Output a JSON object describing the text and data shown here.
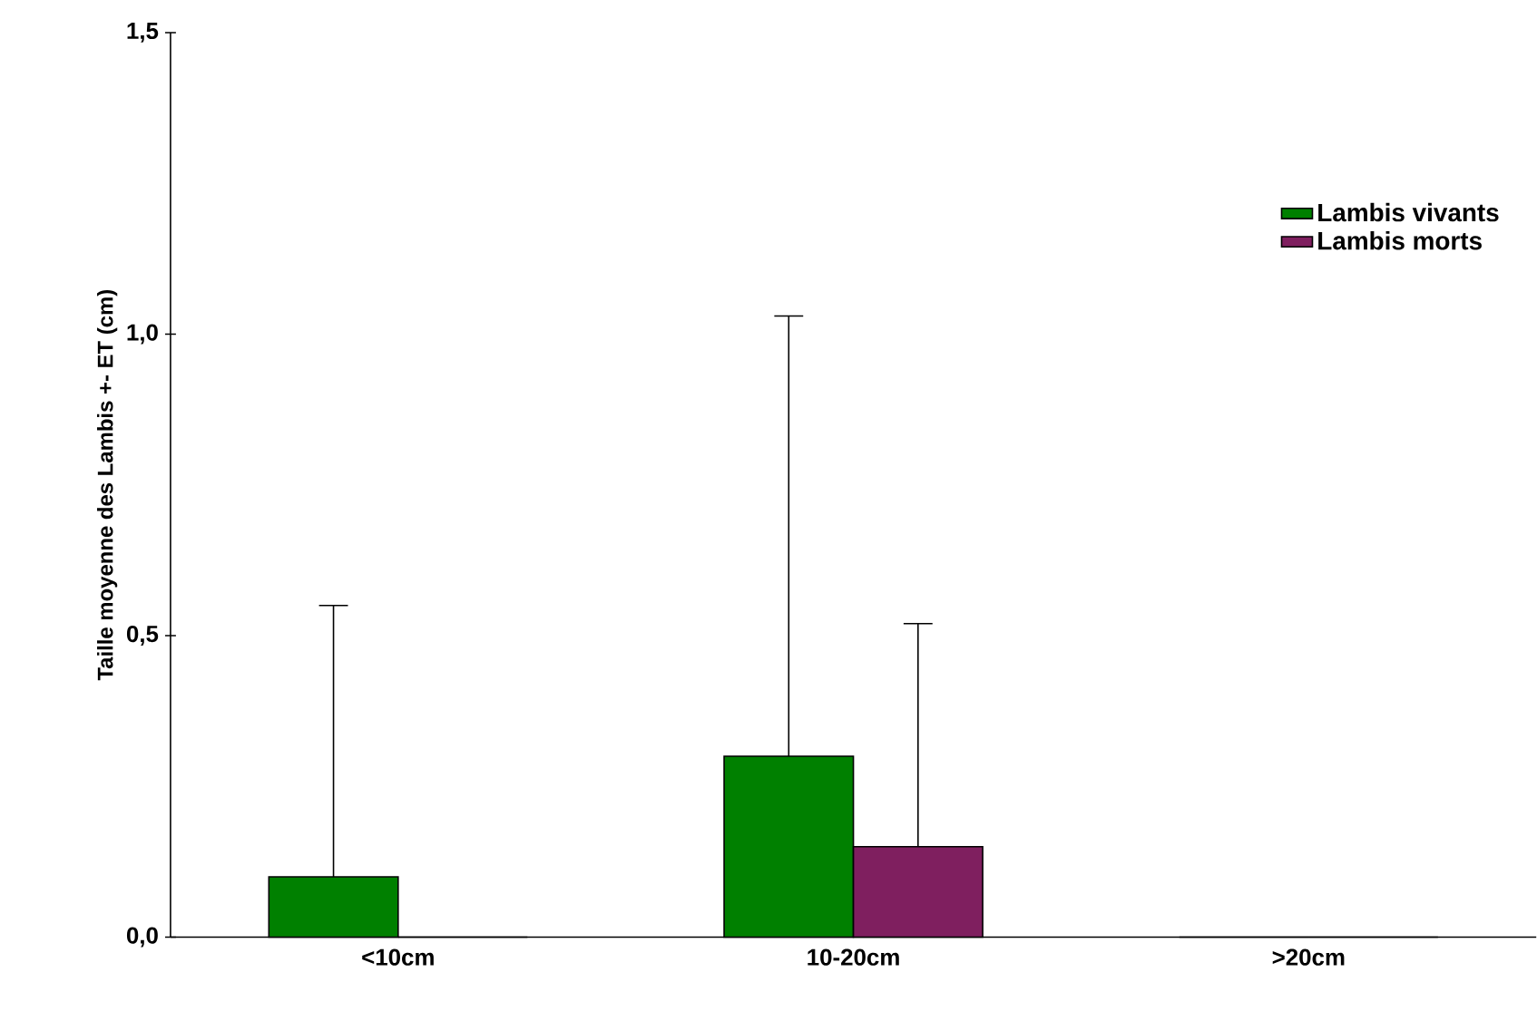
{
  "chart_data": {
    "type": "bar",
    "ylabel": "Taille moyenne des Lambis +- ET (cm)",
    "categories": [
      "<10cm",
      "10-20cm",
      ">20cm"
    ],
    "series": [
      {
        "name": "Lambis vivants",
        "color": "#008000",
        "values": [
          0.1,
          0.3,
          0
        ],
        "errors": [
          [
            0.1,
            0.55
          ],
          [
            0.3,
            1.03
          ],
          null
        ]
      },
      {
        "name": "Lambis morts",
        "color": "#7f1f5f",
        "values": [
          0,
          0.15,
          0
        ],
        "errors": [
          null,
          [
            0.15,
            0.52
          ],
          null
        ]
      }
    ],
    "ylim": [
      0,
      1.5
    ],
    "yticks": [
      {
        "value": 0,
        "label": "0,0"
      },
      {
        "value": 0.5,
        "label": "0,5"
      },
      {
        "value": 1,
        "label": "1,0"
      },
      {
        "value": 1.5,
        "label": "1,5"
      }
    ],
    "grid": false,
    "legend": "top right"
  }
}
